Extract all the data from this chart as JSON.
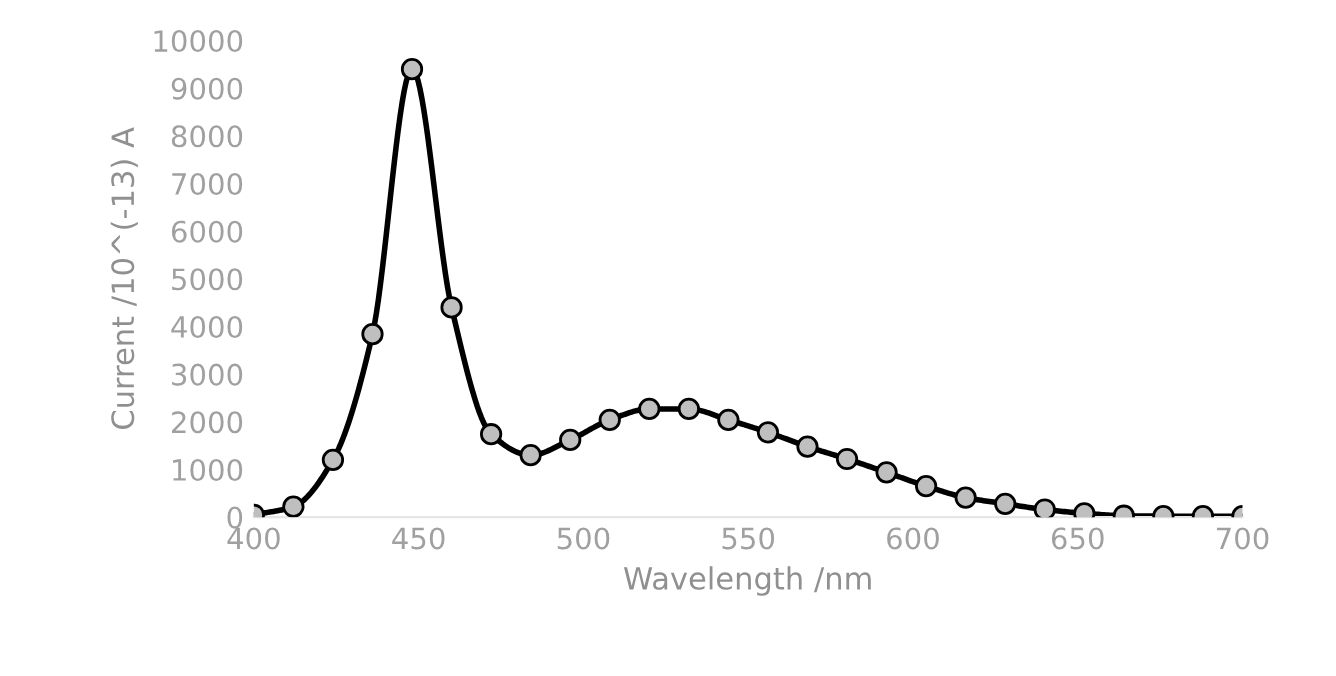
{
  "chart_data": {
    "type": "line",
    "xlabel": "Wavelength /nm",
    "ylabel": "Current /10^(-13) A",
    "x": [
      400,
      412,
      424,
      436,
      448,
      460,
      472,
      484,
      496,
      508,
      520,
      532,
      544,
      556,
      568,
      580,
      592,
      604,
      616,
      628,
      640,
      652,
      664,
      676,
      688,
      700
    ],
    "series": [
      {
        "color": "#000000",
        "values": [
          50,
          220,
          1200,
          3840,
          9400,
          4400,
          1740,
          1300,
          1620,
          2040,
          2270,
          2270,
          2040,
          1780,
          1480,
          1220,
          940,
          650,
          410,
          280,
          160,
          80,
          30,
          20,
          20,
          20
        ]
      }
    ],
    "xlim": [
      400,
      700
    ],
    "xticks": [
      400,
      450,
      500,
      550,
      600,
      650,
      700
    ],
    "ylim": [
      0,
      10000
    ],
    "yticks": [
      0,
      1000,
      2000,
      3000,
      4000,
      5000,
      6000,
      7000,
      8000,
      9000,
      10000
    ],
    "marker": "circle",
    "line_style": "solid",
    "grid": false,
    "legend": false
  }
}
